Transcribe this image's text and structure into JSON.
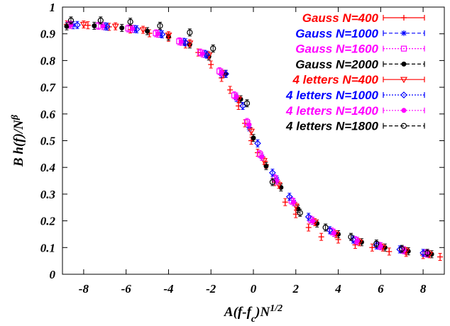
{
  "chart_data": {
    "type": "scatter",
    "xlabel": "A(f-f_c)N^{1/2}",
    "ylabel": "B h(f)/N^β",
    "xlim": [
      -9,
      9
    ],
    "ylim": [
      0,
      1
    ],
    "xticks": [
      -8,
      -6,
      -4,
      -2,
      0,
      2,
      4,
      6,
      8
    ],
    "xtick_labels": [
      "-8",
      "-6",
      "-4",
      "-2",
      "0",
      "2",
      "4",
      "6",
      "8"
    ],
    "yticks": [
      0,
      0.1,
      0.2,
      0.3,
      0.4,
      0.5,
      0.6,
      0.7,
      0.8,
      0.9,
      1
    ],
    "ytick_labels": [
      "0",
      "0.1",
      "0.2",
      "0.3",
      "0.4",
      "0.5",
      "0.6",
      "0.7",
      "0.8",
      "0.9",
      "1"
    ],
    "grid": false,
    "legend_position": "top-right",
    "series": [
      {
        "name": "Gauss N=400",
        "color": "#ff0000",
        "marker": "plus",
        "line": "solid",
        "x": [
          -8.8,
          -7.8,
          -6.8,
          -5.8,
          -4.9,
          -4.0,
          -3.2,
          -2.6,
          -2.0,
          -1.5,
          -1.1,
          -0.7,
          -0.4,
          -0.1,
          0.2,
          0.6,
          1.0,
          1.5,
          2.0,
          2.6,
          3.2,
          4.0,
          4.8,
          5.6,
          6.4,
          7.2,
          8.0,
          8.8
        ],
        "y": [
          0.935,
          0.932,
          0.926,
          0.916,
          0.902,
          0.885,
          0.86,
          0.83,
          0.785,
          0.735,
          0.69,
          0.63,
          0.565,
          0.5,
          0.455,
          0.41,
          0.345,
          0.27,
          0.225,
          0.175,
          0.14,
          0.13,
          0.11,
          0.1,
          0.085,
          0.08,
          0.072,
          0.065
        ]
      },
      {
        "name": "Gauss N=1000",
        "color": "#0000ff",
        "marker": "asterisk",
        "line": "dashed",
        "x": [
          -8.5,
          -7.0,
          -5.6,
          -4.4,
          -3.3,
          -2.3,
          -1.5,
          -0.8,
          -0.2,
          0.4,
          1.1,
          1.9,
          2.8,
          3.8,
          4.9,
          6.0,
          7.1,
          8.2
        ],
        "y": [
          0.932,
          0.928,
          0.918,
          0.9,
          0.87,
          0.825,
          0.75,
          0.66,
          0.55,
          0.44,
          0.355,
          0.27,
          0.2,
          0.155,
          0.125,
          0.105,
          0.09,
          0.077
        ]
      },
      {
        "name": "Gauss N=1600",
        "color": "#ff00ff",
        "marker": "square",
        "line": "dotted",
        "x": [
          -8.7,
          -7.3,
          -5.9,
          -4.6,
          -3.5,
          -2.5,
          -1.6,
          -0.9,
          -0.3,
          0.3,
          1.0,
          1.8,
          2.7,
          3.7,
          4.8,
          5.9,
          7.0,
          8.1
        ],
        "y": [
          0.934,
          0.93,
          0.92,
          0.902,
          0.872,
          0.83,
          0.76,
          0.67,
          0.57,
          0.45,
          0.36,
          0.275,
          0.205,
          0.16,
          0.128,
          0.107,
          0.092,
          0.079
        ]
      },
      {
        "name": "Gauss N=2000",
        "color": "#000000",
        "marker": "dot",
        "line": "dashed",
        "x": [
          -8.8,
          -7.5,
          -6.2,
          -5.0,
          -4.0,
          -3.0,
          -2.1,
          -1.3,
          -0.6,
          0.0,
          0.6,
          1.3,
          2.1,
          3.0,
          4.0,
          5.1,
          6.2,
          7.3,
          8.4
        ],
        "y": [
          0.928,
          0.93,
          0.922,
          0.91,
          0.89,
          0.86,
          0.815,
          0.75,
          0.655,
          0.51,
          0.405,
          0.325,
          0.245,
          0.19,
          0.15,
          0.12,
          0.1,
          0.086,
          0.075
        ]
      },
      {
        "name": "4 letters N=400",
        "color": "#ff0000",
        "marker": "triangle-down",
        "line": "solid",
        "x": [
          -8.0,
          -6.5,
          -5.2,
          -4.0,
          -3.0,
          -2.1,
          -1.4,
          -0.7,
          -0.1,
          0.5,
          1.2,
          2.0,
          2.9,
          3.9,
          5.0,
          6.1,
          7.2,
          8.3
        ],
        "y": [
          0.935,
          0.928,
          0.915,
          0.895,
          0.865,
          0.82,
          0.75,
          0.655,
          0.535,
          0.425,
          0.335,
          0.255,
          0.195,
          0.15,
          0.12,
          0.1,
          0.087,
          0.075
        ]
      },
      {
        "name": "4 letters N=1000",
        "color": "#0000ff",
        "marker": "diamond",
        "line": "dotted",
        "x": [
          -8.3,
          -6.9,
          -5.5,
          -4.3,
          -3.2,
          -2.2,
          -1.3,
          -0.5,
          0.2,
          0.9,
          1.7,
          2.6,
          3.6,
          4.7,
          5.8,
          6.9,
          8.0
        ],
        "y": [
          0.933,
          0.927,
          0.917,
          0.898,
          0.868,
          0.822,
          0.75,
          0.63,
          0.49,
          0.38,
          0.29,
          0.215,
          0.165,
          0.13,
          0.108,
          0.093,
          0.08
        ]
      },
      {
        "name": "4 letters N=1400",
        "color": "#ff00ff",
        "marker": "dot",
        "line": "dotted",
        "x": [
          -8.6,
          -7.1,
          -5.7,
          -4.5,
          -3.4,
          -2.4,
          -1.5,
          -0.8,
          -0.2,
          0.4,
          1.1,
          1.9,
          2.8,
          3.8,
          4.9,
          6.0,
          7.1,
          8.2
        ],
        "y": [
          0.933,
          0.929,
          0.919,
          0.9,
          0.87,
          0.826,
          0.755,
          0.665,
          0.56,
          0.44,
          0.35,
          0.27,
          0.2,
          0.155,
          0.125,
          0.105,
          0.09,
          0.077
        ]
      },
      {
        "name": "4 letters N=1800",
        "color": "#000000",
        "marker": "circle",
        "line": "dashed",
        "x": [
          -8.6,
          -7.2,
          -5.8,
          -4.4,
          -3.0,
          -1.9,
          -0.3,
          0.9,
          2.2,
          3.4,
          4.6,
          5.8,
          7.0,
          8.2
        ],
        "y": [
          0.95,
          0.95,
          0.945,
          0.93,
          0.905,
          0.845,
          0.64,
          0.345,
          0.23,
          0.175,
          0.14,
          0.115,
          0.095,
          0.08
        ]
      }
    ]
  }
}
